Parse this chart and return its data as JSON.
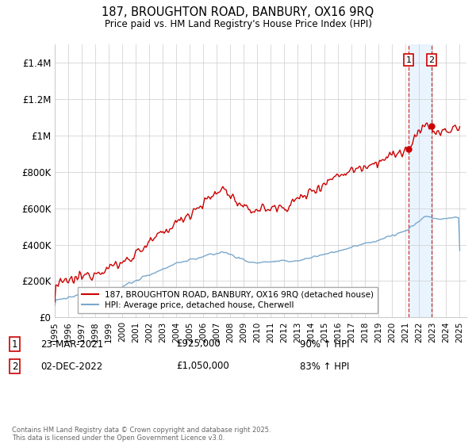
{
  "title": "187, BROUGHTON ROAD, BANBURY, OX16 9RQ",
  "subtitle": "Price paid vs. HM Land Registry's House Price Index (HPI)",
  "ylabel_ticks": [
    "£0",
    "£200K",
    "£400K",
    "£600K",
    "£800K",
    "£1M",
    "£1.2M",
    "£1.4M"
  ],
  "ytick_values": [
    0,
    200000,
    400000,
    600000,
    800000,
    1000000,
    1200000,
    1400000
  ],
  "ylim": [
    0,
    1500000
  ],
  "xlim_start": 1995,
  "xlim_end": 2025.5,
  "xticks": [
    1995,
    1996,
    1997,
    1998,
    1999,
    2000,
    2001,
    2002,
    2003,
    2004,
    2005,
    2006,
    2007,
    2008,
    2009,
    2010,
    2011,
    2012,
    2013,
    2014,
    2015,
    2016,
    2017,
    2018,
    2019,
    2020,
    2021,
    2022,
    2023,
    2024,
    2025
  ],
  "red_line_color": "#cc0000",
  "blue_line_color": "#7aa8cc",
  "sale1_x": 2021.22,
  "sale1_y": 925000,
  "sale2_x": 2022.92,
  "sale2_y": 1050000,
  "vline1_x": 2021.22,
  "vline2_x": 2022.92,
  "legend_red_label": "187, BROUGHTON ROAD, BANBURY, OX16 9RQ (detached house)",
  "legend_blue_label": "HPI: Average price, detached house, Cherwell",
  "annotation1_date": "23-MAR-2021",
  "annotation1_price": "£925,000",
  "annotation1_hpi": "90% ↑ HPI",
  "annotation2_date": "02-DEC-2022",
  "annotation2_price": "£1,050,000",
  "annotation2_hpi": "83% ↑ HPI",
  "footer": "Contains HM Land Registry data © Crown copyright and database right 2025.\nThis data is licensed under the Open Government Licence v3.0.",
  "background_color": "#ffffff",
  "grid_color": "#cccccc",
  "shade_color": "#ddeeff"
}
